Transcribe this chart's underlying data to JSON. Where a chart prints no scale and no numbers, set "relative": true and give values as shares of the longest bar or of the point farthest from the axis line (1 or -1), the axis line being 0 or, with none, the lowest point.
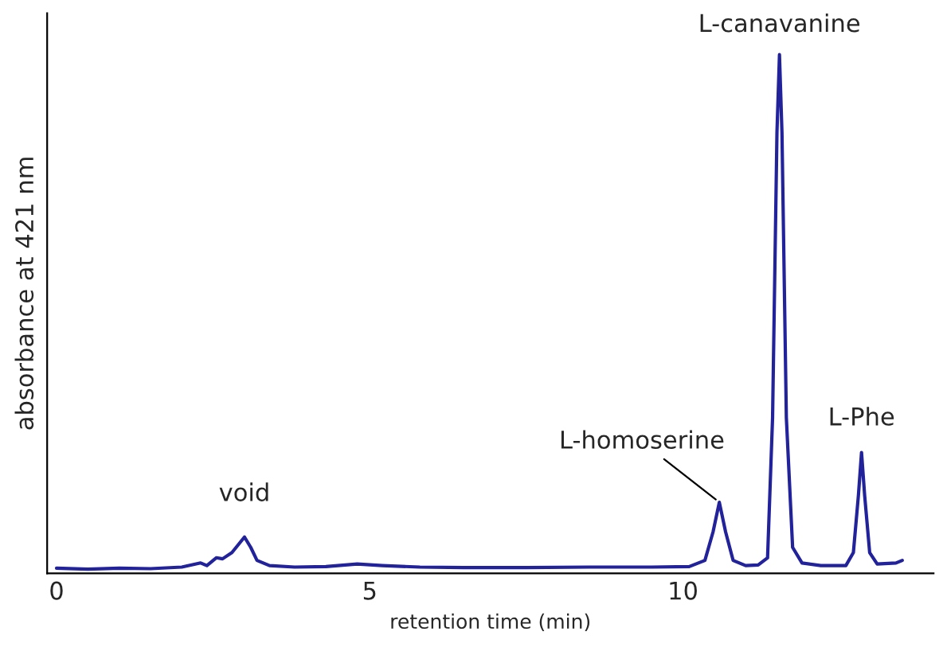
{
  "chart_data": {
    "type": "line",
    "relative": true,
    "xlabel": "retention time (min)",
    "ylabel": "absorbance at 421 nm",
    "xlim": [
      -0.15,
      14.0
    ],
    "xticks": [
      0,
      5,
      10
    ],
    "tick_labels": "x",
    "grid": false,
    "legend": false,
    "marker": "none",
    "line_style": "solid",
    "series": [
      {
        "color": "#22229a",
        "x": [
          0,
          0.5,
          1,
          1.5,
          2.0,
          2.3,
          2.4,
          2.55,
          2.65,
          2.8,
          2.9,
          3.0,
          3.1,
          3.2,
          3.4,
          3.8,
          4.3,
          4.8,
          5.2,
          5.8,
          6.5,
          7.5,
          8.5,
          9.5,
          10.1,
          10.35,
          10.48,
          10.58,
          10.68,
          10.8,
          11.0,
          11.2,
          11.35,
          11.43,
          11.5,
          11.54,
          11.58,
          11.65,
          11.75,
          11.9,
          12.2,
          12.6,
          12.72,
          12.8,
          12.85,
          12.9,
          12.98,
          13.1,
          13.4,
          13.5
        ],
        "values": [
          0.01,
          0.008,
          0.01,
          0.009,
          0.012,
          0.02,
          0.015,
          0.03,
          0.028,
          0.04,
          0.055,
          0.07,
          0.05,
          0.025,
          0.015,
          0.012,
          0.013,
          0.018,
          0.015,
          0.012,
          0.011,
          0.011,
          0.012,
          0.012,
          0.013,
          0.025,
          0.08,
          0.137,
          0.08,
          0.025,
          0.015,
          0.016,
          0.03,
          0.3,
          0.85,
          1.0,
          0.85,
          0.3,
          0.05,
          0.02,
          0.015,
          0.015,
          0.04,
          0.15,
          0.233,
          0.15,
          0.04,
          0.018,
          0.02,
          0.025
        ]
      }
    ],
    "annotations": [
      {
        "text": "void",
        "x": 3.0,
        "y": 0.07
      },
      {
        "text": "L-homoserine",
        "x": 10.58,
        "y": 0.137
      },
      {
        "text": "L-canavanine",
        "x": 11.54,
        "y": 1.0
      },
      {
        "text": "L-Phe",
        "x": 12.85,
        "y": 0.233
      }
    ]
  }
}
